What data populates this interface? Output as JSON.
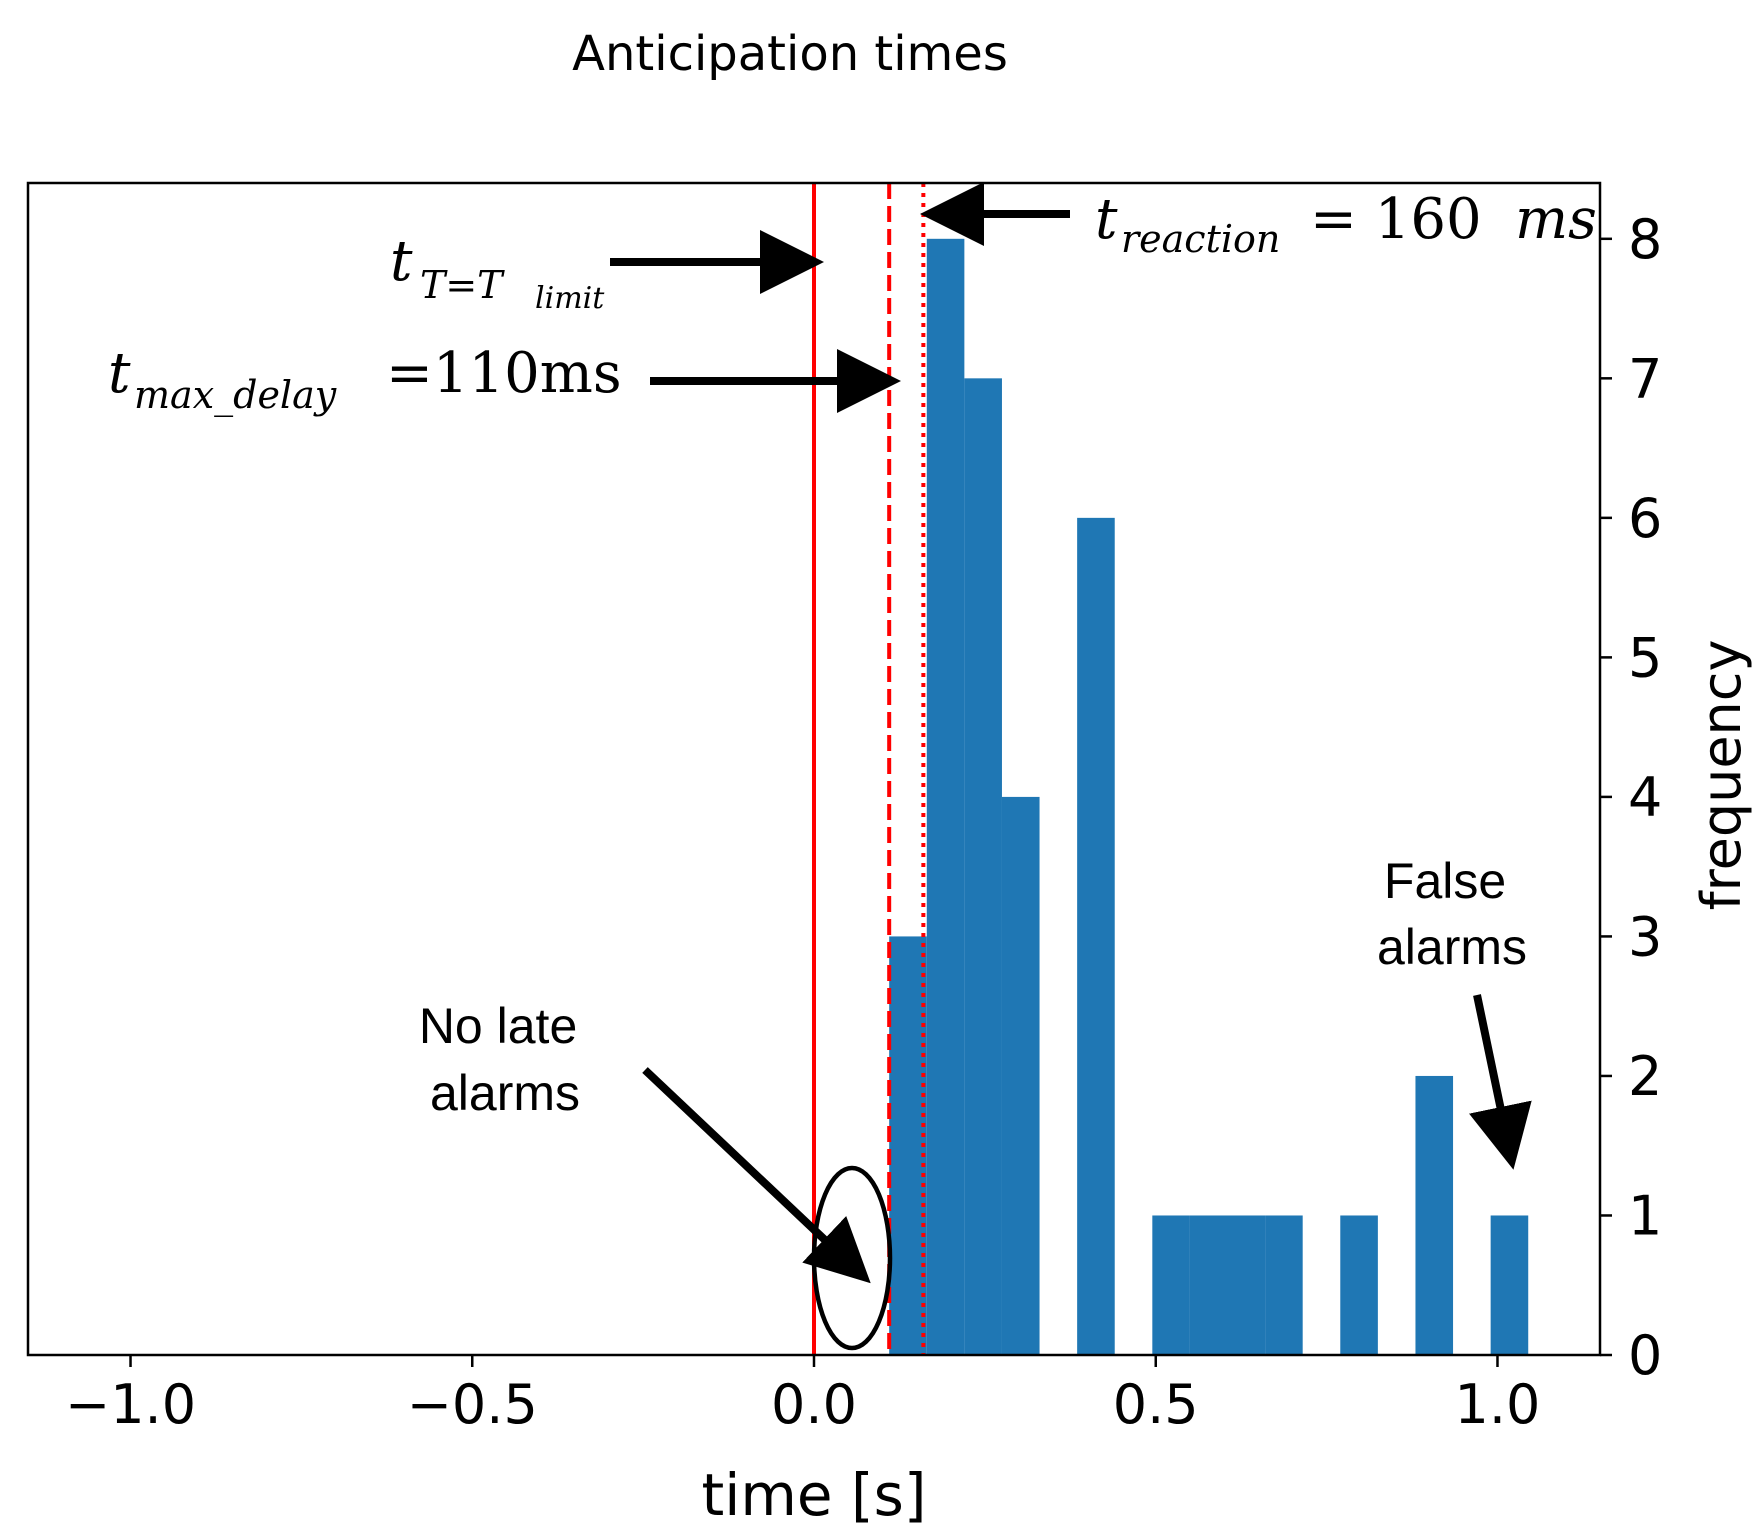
{
  "chart_data": {
    "type": "bar",
    "title": "Anticipation times",
    "xlabel": "time [s]",
    "ylabel": "frequency",
    "xlim": [
      -1.15,
      1.15
    ],
    "ylim": [
      0,
      8.4
    ],
    "xticks": [
      -1.0,
      -0.5,
      0.0,
      0.5,
      1.0
    ],
    "xtick_labels": [
      "−1.0",
      "−0.5",
      "0.0",
      "0.5",
      "1.0"
    ],
    "yticks": [
      0,
      1,
      2,
      3,
      4,
      5,
      6,
      7,
      8
    ],
    "ytick_labels": [
      "0",
      "1",
      "2",
      "3",
      "4",
      "5",
      "6",
      "7",
      "8"
    ],
    "y_axis_side": "right",
    "bin_width": 0.055,
    "bars": [
      {
        "x0": 0.11,
        "value": 3
      },
      {
        "x0": 0.165,
        "value": 8
      },
      {
        "x0": 0.22,
        "value": 7
      },
      {
        "x0": 0.275,
        "value": 4
      },
      {
        "x0": 0.385,
        "value": 6
      },
      {
        "x0": 0.495,
        "value": 1
      },
      {
        "x0": 0.55,
        "value": 1
      },
      {
        "x0": 0.605,
        "value": 1
      },
      {
        "x0": 0.66,
        "value": 1
      },
      {
        "x0": 0.77,
        "value": 1
      },
      {
        "x0": 0.88,
        "value": 2
      },
      {
        "x0": 0.99,
        "value": 1
      }
    ],
    "bar_color": "#1f77b4",
    "vlines": [
      {
        "x": 0.0,
        "style": "solid",
        "color": "#ff0000"
      },
      {
        "x": 0.11,
        "style": "dashed",
        "color": "#ff0000"
      },
      {
        "x": 0.16,
        "style": "dotted",
        "color": "#ff0000"
      }
    ],
    "annotations": {
      "t_limit": {
        "main": "t",
        "sub": "T=T",
        "subsub": "limit"
      },
      "t_max_delay": {
        "main": "t",
        "sub": "max_delay",
        "rest": "=110ms"
      },
      "t_reaction": {
        "main": "t",
        "sub": "reaction",
        "rest": " = 160",
        "unit": "ms"
      },
      "no_late_alarms": [
        "No late",
        "alarms"
      ],
      "false_alarms": [
        "False",
        "alarms"
      ]
    }
  }
}
